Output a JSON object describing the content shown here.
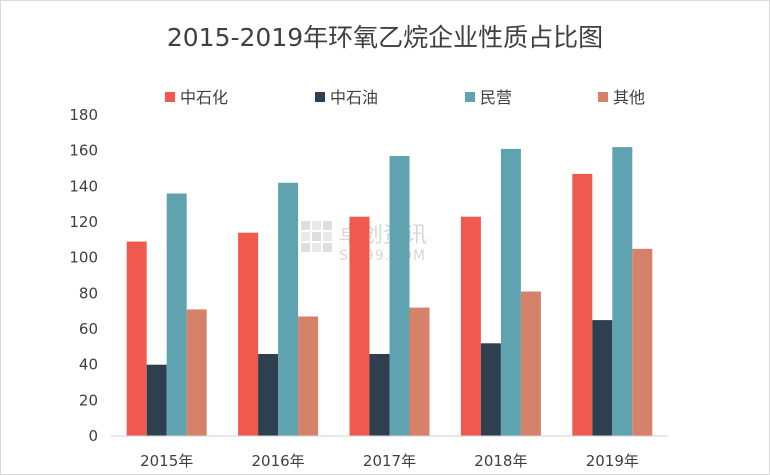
{
  "chart_data": {
    "type": "bar",
    "title": "2015-2019年环氧乙烷企业性质占比图",
    "categories": [
      "2015年",
      "2016年",
      "2017年",
      "2018年",
      "2019年"
    ],
    "series": [
      {
        "name": "中石化",
        "color": "#f05a4e",
        "values": [
          109,
          114,
          123,
          123,
          147
        ]
      },
      {
        "name": "中石油",
        "color": "#2e4050",
        "values": [
          40,
          46,
          46,
          52,
          65
        ]
      },
      {
        "name": "民营",
        "color": "#5fa3b0",
        "values": [
          136,
          142,
          157,
          161,
          162
        ]
      },
      {
        "name": "其他",
        "color": "#d6826a",
        "values": [
          71,
          67,
          72,
          81,
          105
        ]
      }
    ],
    "ylim": [
      0,
      180
    ],
    "yticks": [
      0,
      20,
      40,
      60,
      80,
      100,
      120,
      140,
      160,
      180
    ],
    "grid": false,
    "legend_position": "top",
    "xlabel": "",
    "ylabel": ""
  },
  "watermark": {
    "line1": "卓创资讯",
    "line2": "SCI99.COM"
  }
}
